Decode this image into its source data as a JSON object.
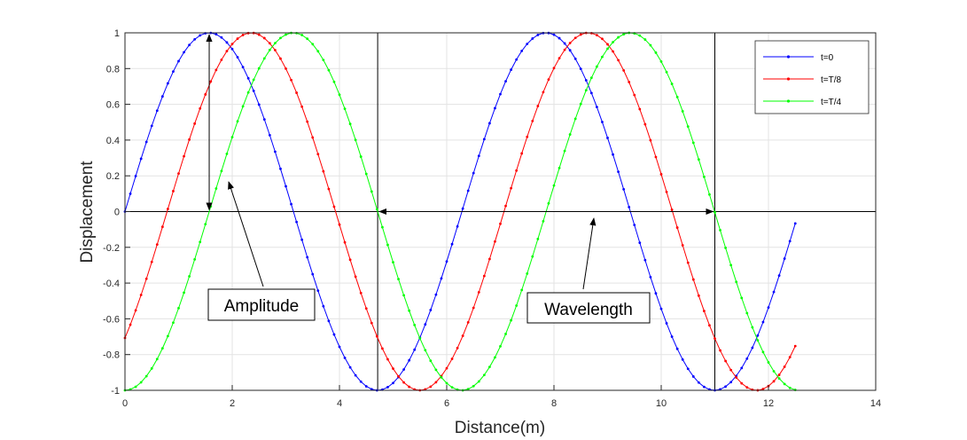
{
  "chart_data": {
    "type": "line",
    "xlabel": "Distance(m)",
    "ylabel": "Displacement",
    "xlim": [
      0,
      14
    ],
    "ylim": [
      -1,
      1
    ],
    "xticks": [
      0,
      2,
      4,
      6,
      8,
      10,
      12,
      14
    ],
    "xtick_labels": [
      "0",
      "2",
      "4",
      "6",
      "8",
      "10",
      "12",
      "14"
    ],
    "yticks": [
      -1,
      -0.8,
      -0.6,
      -0.4,
      -0.2,
      0,
      0.2,
      0.4,
      0.6,
      0.8,
      1
    ],
    "ytick_labels": [
      "-1",
      "-0.8",
      "-0.6",
      "-0.4",
      "-0.2",
      "0",
      "0.2",
      "0.4",
      "0.6",
      "0.8",
      "1"
    ],
    "grid": true,
    "legend_position": "top-right",
    "x_range": [
      0,
      12.5
    ],
    "point_step": 0.1,
    "series": [
      {
        "name": "t=0",
        "color": "#0000ff",
        "function": "sin(x)",
        "phase": 0
      },
      {
        "name": "t=T/8",
        "color": "#ff0000",
        "function": "sin(x - pi/4)",
        "phase": 0.7854
      },
      {
        "name": "t=T/4",
        "color": "#00ff00",
        "function": "sin(x - pi/2)",
        "phase": 1.5708
      }
    ],
    "vertical_lines_x": [
      4.7124,
      11.0
    ],
    "annotations": [
      {
        "text": "Amplitude"
      },
      {
        "text": "Wavelength"
      }
    ]
  }
}
